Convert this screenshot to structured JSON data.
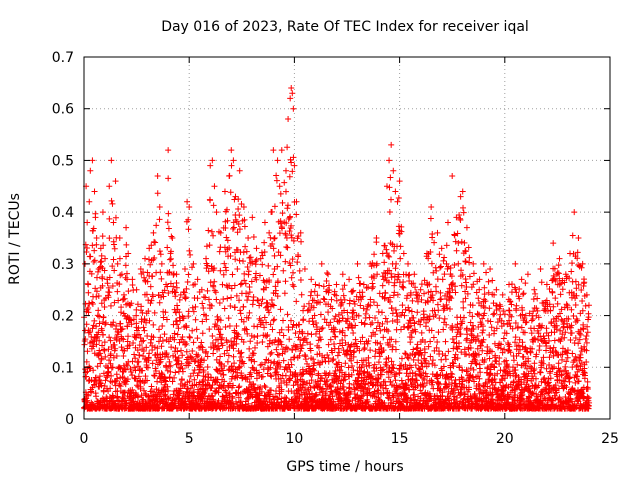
{
  "chart_data": {
    "type": "scatter",
    "title": "Day 016 of 2023, Rate Of TEC Index for receiver iqal",
    "xlabel": "GPS time / hours",
    "ylabel": "ROTI / TECUs",
    "xlim": [
      0,
      25
    ],
    "ylim": [
      0,
      0.7
    ],
    "xticks": [
      0,
      5,
      10,
      15,
      20,
      25
    ],
    "yticks": [
      0,
      0.1,
      0.2,
      0.3,
      0.4,
      0.5,
      0.6,
      0.7
    ],
    "xtick_labels": [
      "0",
      "5",
      "10",
      "15",
      "20",
      "25"
    ],
    "ytick_labels": [
      "0",
      "0.1",
      "0.2",
      "0.3",
      "0.4",
      "0.5",
      "0.6",
      "0.7"
    ],
    "grid": true,
    "marker": "+",
    "color": "#ff0000",
    "data_range_x": [
      0,
      24
    ],
    "series": [
      {
        "name": "ROTI",
        "x": [
          0.05,
          0.1,
          0.15,
          0.2,
          0.25,
          0.3,
          0.4,
          0.5,
          0.6,
          0.7,
          0.8,
          0.9,
          1.0,
          1.1,
          1.2,
          1.3,
          1.4,
          1.5,
          1.6,
          1.7,
          1.8,
          1.9,
          2.0,
          2.1,
          2.2,
          2.3,
          2.5,
          2.7,
          2.9,
          3.1,
          3.3,
          3.5,
          3.6,
          3.7,
          3.9,
          4.0,
          4.2,
          4.4,
          4.6,
          4.8,
          4.9,
          5.0,
          5.2,
          5.4,
          5.6,
          5.8,
          6.0,
          6.1,
          6.2,
          6.3,
          6.5,
          6.7,
          6.9,
          7.0,
          7.1,
          7.2,
          7.4,
          7.6,
          7.8,
          8.0,
          8.2,
          8.4,
          8.6,
          8.8,
          9.0,
          9.2,
          9.3,
          9.4,
          9.6,
          9.7,
          9.8,
          9.85,
          9.9,
          9.95,
          10.0,
          10.1,
          10.3,
          10.5,
          10.8,
          11.0,
          11.3,
          11.6,
          12.0,
          12.3,
          12.6,
          13.0,
          13.3,
          13.6,
          13.9,
          14.2,
          14.4,
          14.5,
          14.6,
          14.7,
          14.8,
          14.9,
          15.0,
          15.2,
          15.4,
          15.7,
          16.0,
          16.3,
          16.5,
          16.8,
          17.0,
          17.3,
          17.5,
          17.7,
          17.9,
          18.0,
          18.2,
          18.5,
          18.8,
          19.0,
          19.3,
          19.6,
          19.9,
          20.2,
          20.5,
          20.8,
          21.1,
          21.4,
          21.7,
          22.0,
          22.3,
          22.6,
          22.9,
          23.1,
          23.3,
          23.5,
          23.7,
          23.9,
          24.0
        ],
        "y": [
          0.3,
          0.45,
          0.38,
          0.26,
          0.42,
          0.48,
          0.5,
          0.44,
          0.35,
          0.29,
          0.33,
          0.4,
          0.31,
          0.27,
          0.45,
          0.5,
          0.38,
          0.46,
          0.3,
          0.35,
          0.28,
          0.24,
          0.37,
          0.32,
          0.22,
          0.27,
          0.25,
          0.29,
          0.31,
          0.33,
          0.36,
          0.47,
          0.41,
          0.3,
          0.26,
          0.52,
          0.35,
          0.28,
          0.24,
          0.29,
          0.42,
          0.41,
          0.3,
          0.27,
          0.25,
          0.31,
          0.49,
          0.5,
          0.45,
          0.4,
          0.36,
          0.44,
          0.47,
          0.52,
          0.5,
          0.43,
          0.48,
          0.41,
          0.35,
          0.39,
          0.33,
          0.31,
          0.38,
          0.36,
          0.52,
          0.5,
          0.45,
          0.52,
          0.48,
          0.58,
          0.62,
          0.64,
          0.63,
          0.6,
          0.49,
          0.42,
          0.36,
          0.29,
          0.27,
          0.26,
          0.3,
          0.28,
          0.26,
          0.28,
          0.27,
          0.3,
          0.26,
          0.3,
          0.35,
          0.32,
          0.45,
          0.5,
          0.53,
          0.48,
          0.44,
          0.42,
          0.46,
          0.32,
          0.3,
          0.28,
          0.25,
          0.32,
          0.41,
          0.36,
          0.33,
          0.38,
          0.47,
          0.39,
          0.43,
          0.44,
          0.37,
          0.3,
          0.27,
          0.3,
          0.29,
          0.25,
          0.24,
          0.26,
          0.3,
          0.27,
          0.28,
          0.25,
          0.29,
          0.26,
          0.34,
          0.31,
          0.28,
          0.32,
          0.4,
          0.35,
          0.3,
          0.24,
          0.22
        ]
      }
    ]
  }
}
